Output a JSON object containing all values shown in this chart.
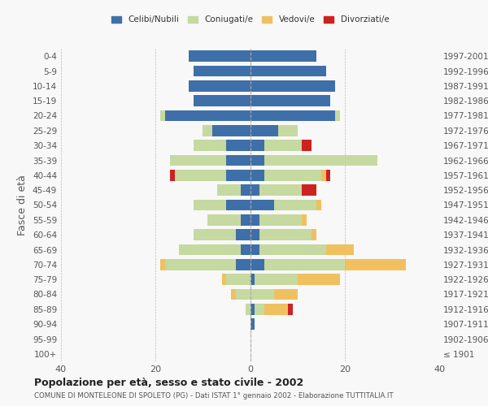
{
  "age_groups": [
    "100+",
    "95-99",
    "90-94",
    "85-89",
    "80-84",
    "75-79",
    "70-74",
    "65-69",
    "60-64",
    "55-59",
    "50-54",
    "45-49",
    "40-44",
    "35-39",
    "30-34",
    "25-29",
    "20-24",
    "15-19",
    "10-14",
    "5-9",
    "0-4"
  ],
  "birth_years": [
    "≤ 1901",
    "1902-1906",
    "1907-1911",
    "1912-1916",
    "1917-1921",
    "1922-1926",
    "1927-1931",
    "1932-1936",
    "1937-1941",
    "1942-1946",
    "1947-1951",
    "1952-1956",
    "1957-1961",
    "1962-1966",
    "1967-1971",
    "1972-1976",
    "1977-1981",
    "1982-1986",
    "1987-1991",
    "1992-1996",
    "1997-2001"
  ],
  "colors": {
    "celibi": "#3f6fa8",
    "coniugati": "#c5d9a0",
    "vedovi": "#f0c060",
    "divorziati": "#cc2222"
  },
  "males": {
    "celibi": [
      0,
      0,
      0,
      0,
      0,
      0,
      3,
      2,
      3,
      2,
      5,
      2,
      5,
      5,
      5,
      8,
      18,
      12,
      13,
      12,
      13
    ],
    "coniugati": [
      0,
      0,
      0,
      1,
      3,
      5,
      15,
      13,
      9,
      7,
      7,
      5,
      11,
      12,
      7,
      2,
      1,
      0,
      0,
      0,
      0
    ],
    "vedovi": [
      0,
      0,
      0,
      0,
      1,
      1,
      1,
      0,
      0,
      0,
      0,
      0,
      0,
      0,
      0,
      0,
      0,
      0,
      0,
      0,
      0
    ],
    "divorziati": [
      0,
      0,
      0,
      0,
      0,
      0,
      0,
      0,
      0,
      0,
      0,
      0,
      1,
      0,
      0,
      0,
      0,
      0,
      0,
      0,
      0
    ]
  },
  "females": {
    "celibi": [
      0,
      0,
      1,
      1,
      0,
      1,
      3,
      2,
      2,
      2,
      5,
      2,
      3,
      3,
      3,
      6,
      18,
      17,
      18,
      16,
      14
    ],
    "coniugati": [
      0,
      0,
      0,
      2,
      5,
      9,
      17,
      14,
      11,
      9,
      9,
      9,
      12,
      24,
      8,
      4,
      1,
      0,
      0,
      0,
      0
    ],
    "vedovi": [
      0,
      0,
      0,
      5,
      5,
      9,
      13,
      6,
      1,
      1,
      1,
      0,
      1,
      0,
      0,
      0,
      0,
      0,
      0,
      0,
      0
    ],
    "divorziati": [
      0,
      0,
      0,
      1,
      0,
      0,
      0,
      0,
      0,
      0,
      0,
      3,
      1,
      0,
      2,
      0,
      0,
      0,
      0,
      0,
      0
    ]
  },
  "xlim": [
    -40,
    40
  ],
  "xticks": [
    -40,
    -20,
    0,
    20,
    40
  ],
  "xticklabels": [
    "40",
    "20",
    "0",
    "20",
    "40"
  ],
  "title": "Popolazione per età, sesso e stato civile - 2002",
  "subtitle": "COMUNE DI MONTELEONE DI SPOLETO (PG) - Dati ISTAT 1° gennaio 2002 - Elaborazione TUTTITALIA.IT",
  "ylabel_left": "Fasce di età",
  "legend_labels": [
    "Celibi/Nubili",
    "Coniugati/e",
    "Vedovi/e",
    "Divorziati/e"
  ],
  "bg_color": "#f8f8f8"
}
